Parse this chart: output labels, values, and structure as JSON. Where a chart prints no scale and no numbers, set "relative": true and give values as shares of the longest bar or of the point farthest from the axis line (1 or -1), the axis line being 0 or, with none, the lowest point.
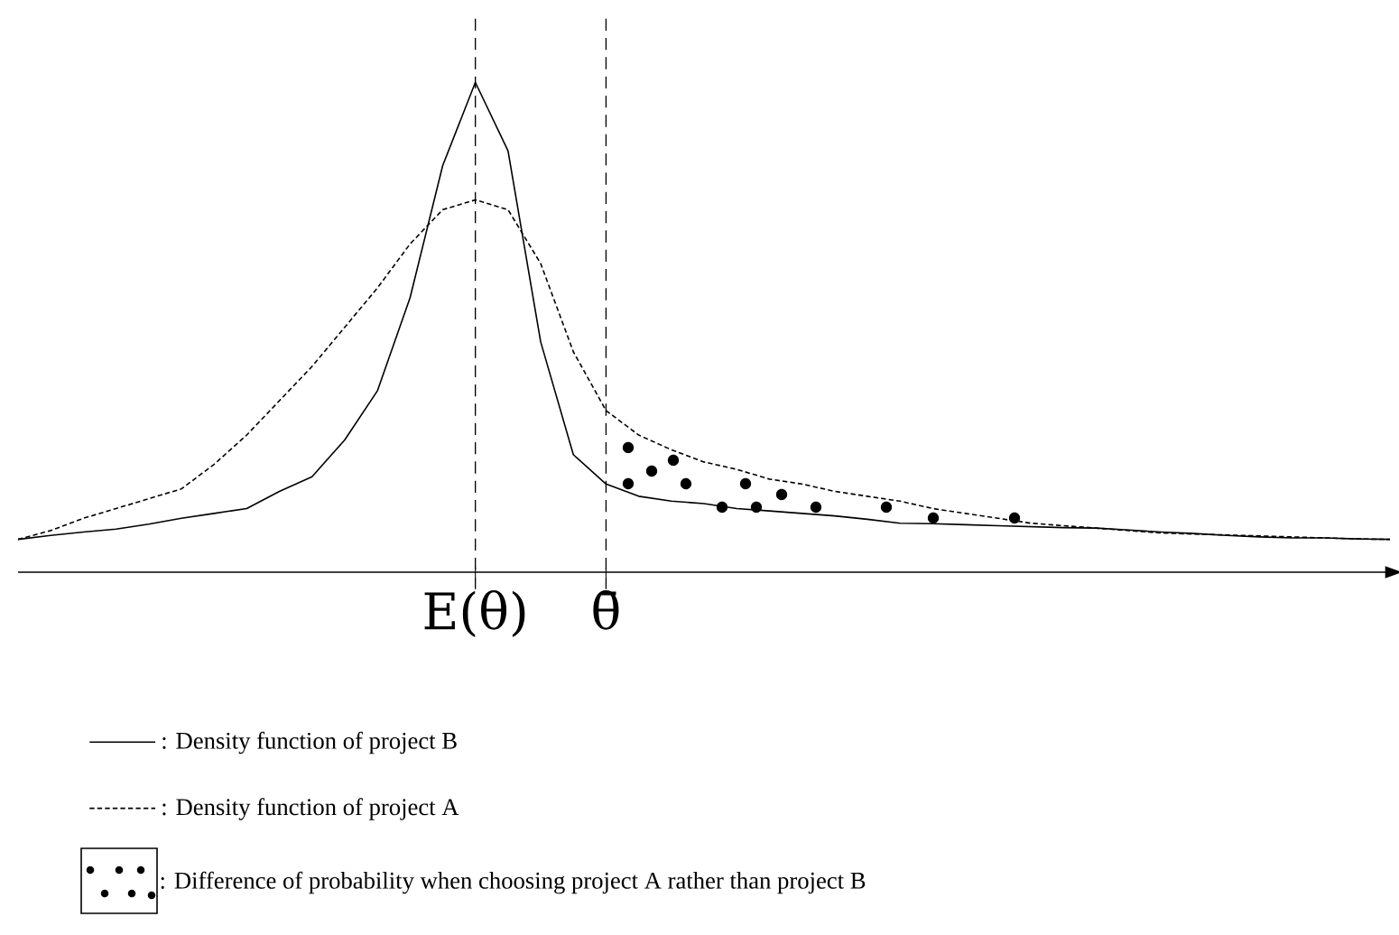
{
  "chart_data": {
    "type": "line",
    "relative": true,
    "tick_labels": "x",
    "legend": "bottom",
    "categories": [
      null,
      null,
      null,
      null,
      null,
      null,
      null,
      null,
      null,
      null,
      null,
      null,
      null,
      null,
      "E(θ)",
      null,
      null,
      null,
      "θ̄",
      null,
      null,
      null,
      null,
      null,
      null,
      null,
      null,
      null,
      null,
      null,
      null,
      null,
      null,
      null,
      null,
      null,
      null,
      null,
      null,
      null,
      null,
      null,
      null
    ],
    "series": [
      {
        "name": ": Density function of project B",
        "color": "#000000",
        "line_style": "solid",
        "values": [
          0.067,
          0.075,
          0.082,
          0.088,
          0.098,
          0.11,
          0.12,
          0.13,
          0.165,
          0.195,
          0.27,
          0.37,
          0.56,
          0.83,
          1,
          0.86,
          0.47,
          0.24,
          0.18,
          0.155,
          0.145,
          0.14,
          0.13,
          0.125,
          0.12,
          0.115,
          0.108,
          0.1,
          0.099,
          0.097,
          0.095,
          0.093,
          0.091,
          0.09,
          0.086,
          0.082,
          0.079,
          0.075,
          0.072,
          0.07,
          0.07,
          0.068,
          0.067
        ]
      },
      {
        "name": ": Density function of project A",
        "color": "#000000",
        "line_style": "dashed",
        "values": [
          0.067,
          0.085,
          0.11,
          0.13,
          0.15,
          0.17,
          0.22,
          0.28,
          0.35,
          0.42,
          0.5,
          0.58,
          0.67,
          0.74,
          0.76,
          0.74,
          0.63,
          0.45,
          0.33,
          0.28,
          0.25,
          0.225,
          0.21,
          0.19,
          0.18,
          0.165,
          0.155,
          0.145,
          0.13,
          0.12,
          0.11,
          0.1,
          0.095,
          0.09,
          0.085,
          0.08,
          0.078,
          0.076,
          0.074,
          0.072,
          0.07,
          0.068,
          0.067
        ]
      }
    ],
    "ref_lines": [
      {
        "axis": "x",
        "value": "E(θ)",
        "line_style": "dashed",
        "color": "#000000"
      },
      {
        "axis": "x",
        "value": "θ̄",
        "line_style": "dashed",
        "color": "#000000"
      }
    ],
    "annotations": [
      ": Difference of probability when choosing project A rather than project B"
    ]
  }
}
